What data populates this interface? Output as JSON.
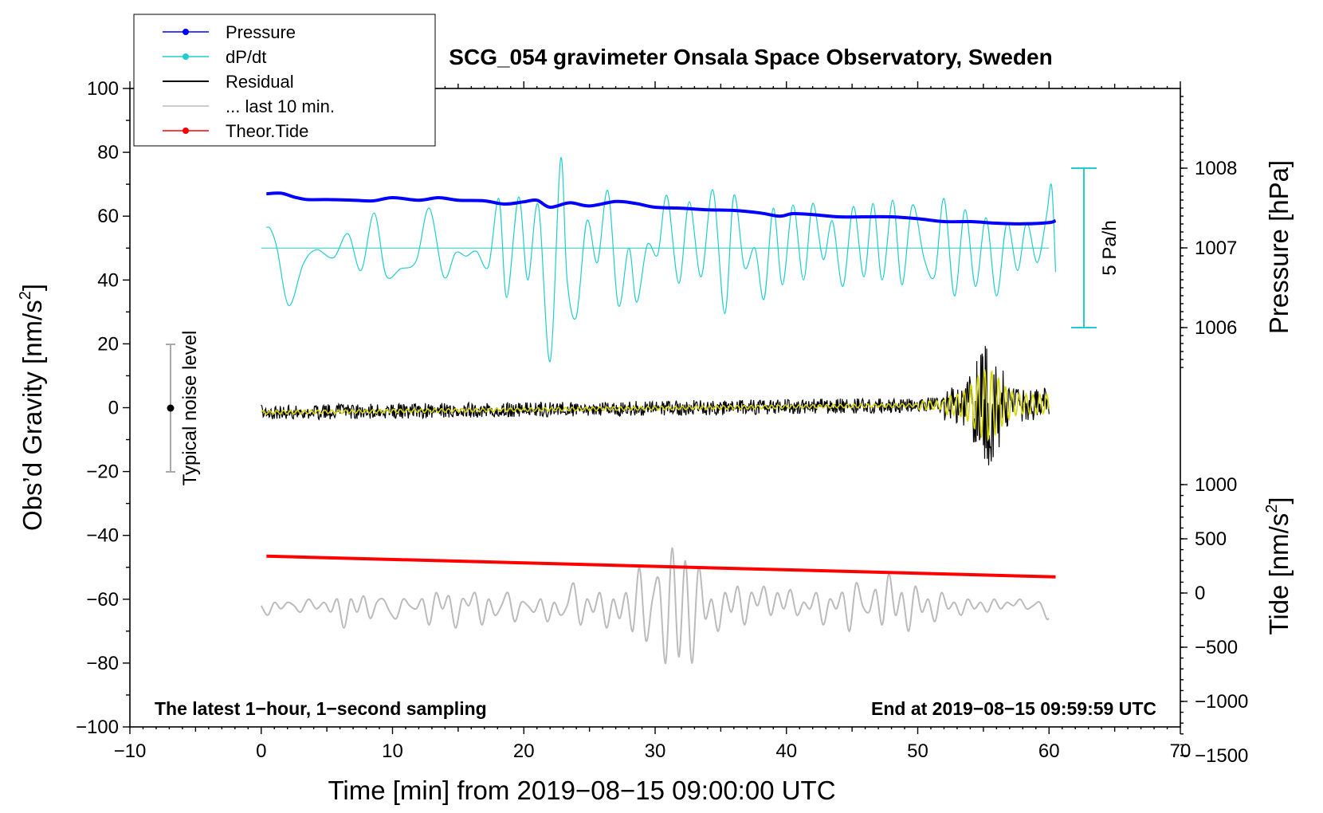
{
  "chart_data": {
    "type": "line",
    "title": "SCG_054 gravimeter Onsala Space Observatory, Sweden",
    "xlabel": "Time [min] from 2019−08−15 09:00:00 UTC",
    "ylabel_left": "Obs’d Gravity [nm/s2]",
    "ylabel_left_base": "Obs’d Gravity [nm/s",
    "ylabel_left_sup": "2",
    "ylabel_left_end": "]",
    "ylabel_right_pressure": "Pressure [hPa]",
    "ylabel_right_tide": "Tide [nm/s2]",
    "ylabel_right_tide_base": "Tide [nm/s",
    "ylabel_right_tide_sup": "2",
    "ylabel_right_tide_end": "]",
    "xlim": [
      -10,
      70
    ],
    "ylim_left": [
      -100,
      100
    ],
    "pressure_range_hpa": [
      1006,
      1008
    ],
    "tide_range": [
      -1500,
      1000
    ],
    "x_ticks": [
      "−10",
      "0",
      "10",
      "20",
      "30",
      "40",
      "50",
      "60",
      "70"
    ],
    "x_tick_values": [
      -10,
      0,
      10,
      20,
      30,
      40,
      50,
      60,
      70
    ],
    "y_ticks_left": [
      "100",
      "80",
      "60",
      "40",
      "20",
      "0",
      "−20",
      "−40",
      "−60",
      "−80",
      "−100"
    ],
    "y_tick_values_left": [
      100,
      80,
      60,
      40,
      20,
      0,
      -20,
      -40,
      -60,
      -80,
      -100
    ],
    "pressure_ticks": [
      "1008",
      "1007",
      "1006"
    ],
    "pressure_tick_values": [
      1008,
      1007,
      1006
    ],
    "tide_ticks": [
      "1000",
      "500",
      "0",
      "−500",
      "−1000",
      "−1500"
    ],
    "tide_tick_values": [
      1000,
      500,
      0,
      -500,
      -1000,
      -1500
    ],
    "legend": [
      {
        "label": "Pressure",
        "color": "#0000ff",
        "marker": true
      },
      {
        "label": "dP/dt",
        "color": "#22cccc",
        "marker": true
      },
      {
        "label": "Residual",
        "color": "#000000",
        "marker": false
      },
      {
        "label": "... last 10 min.",
        "color": "#bbbbbb",
        "marker": false
      },
      {
        "label": "Theor.Tide",
        "color": "#ff0000",
        "marker": true
      }
    ],
    "annotations": {
      "bottom_left": "The latest 1−hour, 1−second sampling",
      "bottom_right": "End at 2019−08−15 09:59:59 UTC",
      "noise": "Typical noise level",
      "rate_bar": "5 Pa/h"
    },
    "series": [
      {
        "name": "Pressure",
        "color": "#0000ff",
        "x": [
          0.4,
          1.5,
          2.5,
          3.5,
          5,
          7,
          8.5,
          10,
          12,
          13.5,
          15,
          17,
          18.5,
          20,
          21,
          22,
          23.5,
          25,
          27,
          28.5,
          30,
          32,
          34,
          36,
          38,
          39.5,
          40.5,
          42,
          44,
          46,
          48,
          50,
          52,
          54,
          56,
          58,
          60,
          60.5
        ],
        "y": [
          67,
          67.2,
          66,
          65.2,
          65.2,
          65,
          64.8,
          65.8,
          65,
          65.8,
          65,
          64.8,
          63.8,
          64.5,
          65,
          62.8,
          64.2,
          63.2,
          64.6,
          64,
          62.8,
          62.5,
          62,
          61.8,
          61,
          60,
          60.8,
          60.5,
          59.8,
          59.8,
          59.8,
          59.2,
          58.3,
          58.3,
          57.8,
          57.6,
          58,
          58.6
        ]
      },
      {
        "name": "dP/dt",
        "color": "#22cccc",
        "zero_line": 50,
        "x": [
          0.4,
          0.7,
          1.2,
          2.1,
          3.2,
          4.2,
          5.5,
          6.6,
          7.6,
          8.6,
          9.5,
          10.6,
          11.8,
          12.8,
          13.9,
          14.8,
          15.6,
          16.4,
          17.3,
          18.1,
          18.7,
          19.6,
          20.3,
          21.1,
          22.0,
          22.8,
          23.3,
          24.0,
          24.8,
          25.6,
          26.4,
          27.2,
          28.0,
          28.6,
          29.4,
          30.2,
          30.9,
          31.8,
          32.6,
          33.5,
          34.4,
          35.3,
          36.0,
          36.8,
          37.6,
          38.3,
          39.0,
          39.7,
          40.5,
          41.3,
          42.0,
          42.8,
          43.5,
          44.3,
          45.1,
          45.9,
          46.6,
          47.3,
          48.1,
          48.8,
          49.6,
          50.5,
          51.3,
          52.0,
          52.8,
          53.6,
          54.4,
          55.2,
          56.0,
          56.8,
          57.6,
          58.3,
          59.1,
          59.8,
          60.2,
          60.5
        ],
        "y": [
          56.5,
          56,
          50,
          32,
          45,
          49.5,
          47,
          54.5,
          43,
          61,
          41.5,
          43.5,
          46,
          62.5,
          41,
          48.5,
          47.5,
          49,
          44.2,
          65.5,
          34.5,
          66,
          40,
          63.5,
          14.5,
          78,
          40,
          28.5,
          58.5,
          45.5,
          68,
          32,
          50,
          33,
          51,
          48,
          66.5,
          39,
          64.5,
          41,
          68.2,
          29.5,
          66.5,
          44,
          50,
          34,
          62.5,
          38.5,
          63.5,
          40,
          64,
          46.5,
          58.5,
          38,
          63,
          41,
          64,
          40,
          65,
          38.5,
          63.5,
          46.5,
          41.5,
          65.5,
          35,
          62,
          38,
          59.5,
          35,
          58,
          43,
          58,
          45.5,
          60,
          69.5,
          42.5
        ]
      },
      {
        "name": "Residual",
        "color": "#000000",
        "x_range": [
          0,
          60
        ],
        "base_amplitude": 2.5,
        "burst_center": 55.3,
        "burst_peak": 18.5,
        "burst_trough": -16
      },
      {
        "name": "... last 10 min.",
        "color": "#bbbbbb",
        "x": [
          0,
          0.5,
          1,
          1.5,
          2,
          2.5,
          3,
          3.6,
          4.2,
          4.8,
          5.3,
          5.8,
          6.3,
          6.8,
          7.3,
          7.8,
          8.3,
          8.8,
          9.3,
          9.8,
          10.3,
          10.8,
          11.3,
          11.8,
          12.3,
          12.8,
          13.3,
          13.8,
          14.3,
          14.8,
          15.3,
          15.8,
          16.3,
          16.8,
          17.3,
          17.8,
          18.3,
          18.8,
          19.3,
          19.8,
          20.3,
          20.8,
          21.3,
          21.8,
          22.3,
          22.8,
          23.3,
          23.8,
          24.3,
          24.8,
          25.3,
          25.8,
          26.3,
          26.8,
          27.3,
          27.8,
          28.3,
          28.8,
          29.3,
          29.8,
          30.3,
          30.8,
          31.3,
          31.8,
          32.3,
          32.8,
          33.3,
          33.8,
          34.3,
          34.8,
          35.3,
          35.8,
          36.3,
          36.8,
          37.3,
          37.8,
          38.3,
          38.8,
          39.3,
          39.8,
          40.3,
          40.8,
          41.3,
          41.8,
          42.3,
          42.8,
          43.3,
          43.8,
          44.3,
          44.8,
          45.3,
          45.8,
          46.3,
          46.8,
          47.3,
          47.8,
          48.3,
          48.8,
          49.3,
          49.8,
          50.3,
          50.8,
          51.3,
          51.8,
          52.3,
          52.8,
          53.3,
          53.8,
          54.3,
          54.8,
          55.3,
          55.8,
          56.3,
          56.8,
          57.3,
          57.8,
          58.3,
          58.8,
          59.3,
          59.8,
          60.0
        ],
        "y": [
          -62,
          -65,
          -61,
          -63,
          -61,
          -62,
          -64,
          -60,
          -63,
          -61,
          -64,
          -60,
          -69,
          -60,
          -64,
          -59,
          -66,
          -61,
          -60,
          -64,
          -66,
          -60,
          -62,
          -63,
          -60,
          -68,
          -58,
          -63,
          -59,
          -69,
          -60,
          -62,
          -58,
          -68,
          -60,
          -65,
          -62,
          -58,
          -67,
          -61,
          -62,
          -64,
          -60,
          -67,
          -61,
          -65,
          -62,
          -55,
          -68,
          -60,
          -64,
          -58,
          -69,
          -60,
          -66,
          -58,
          -70,
          -50,
          -73,
          -60,
          -54,
          -80,
          -44,
          -78,
          -48,
          -80,
          -50,
          -66,
          -60,
          -70,
          -58,
          -64,
          -56,
          -68,
          -58,
          -62,
          -56,
          -65,
          -58,
          -63,
          -57,
          -65,
          -61,
          -63,
          -58,
          -68,
          -60,
          -63,
          -58,
          -70,
          -55,
          -62,
          -64,
          -57,
          -68,
          -52,
          -65,
          -58,
          -70,
          -56,
          -64,
          -60,
          -67,
          -58,
          -63,
          -61,
          -65,
          -60,
          -63,
          -61,
          -64,
          -60,
          -63,
          -61,
          -62,
          -60,
          -63,
          -62,
          -61,
          -66,
          -66
        ]
      },
      {
        "name": "Theor.Tide",
        "color": "#ff0000",
        "x": [
          0.4,
          60.5
        ],
        "y": [
          -46.5,
          -53
        ]
      }
    ]
  }
}
